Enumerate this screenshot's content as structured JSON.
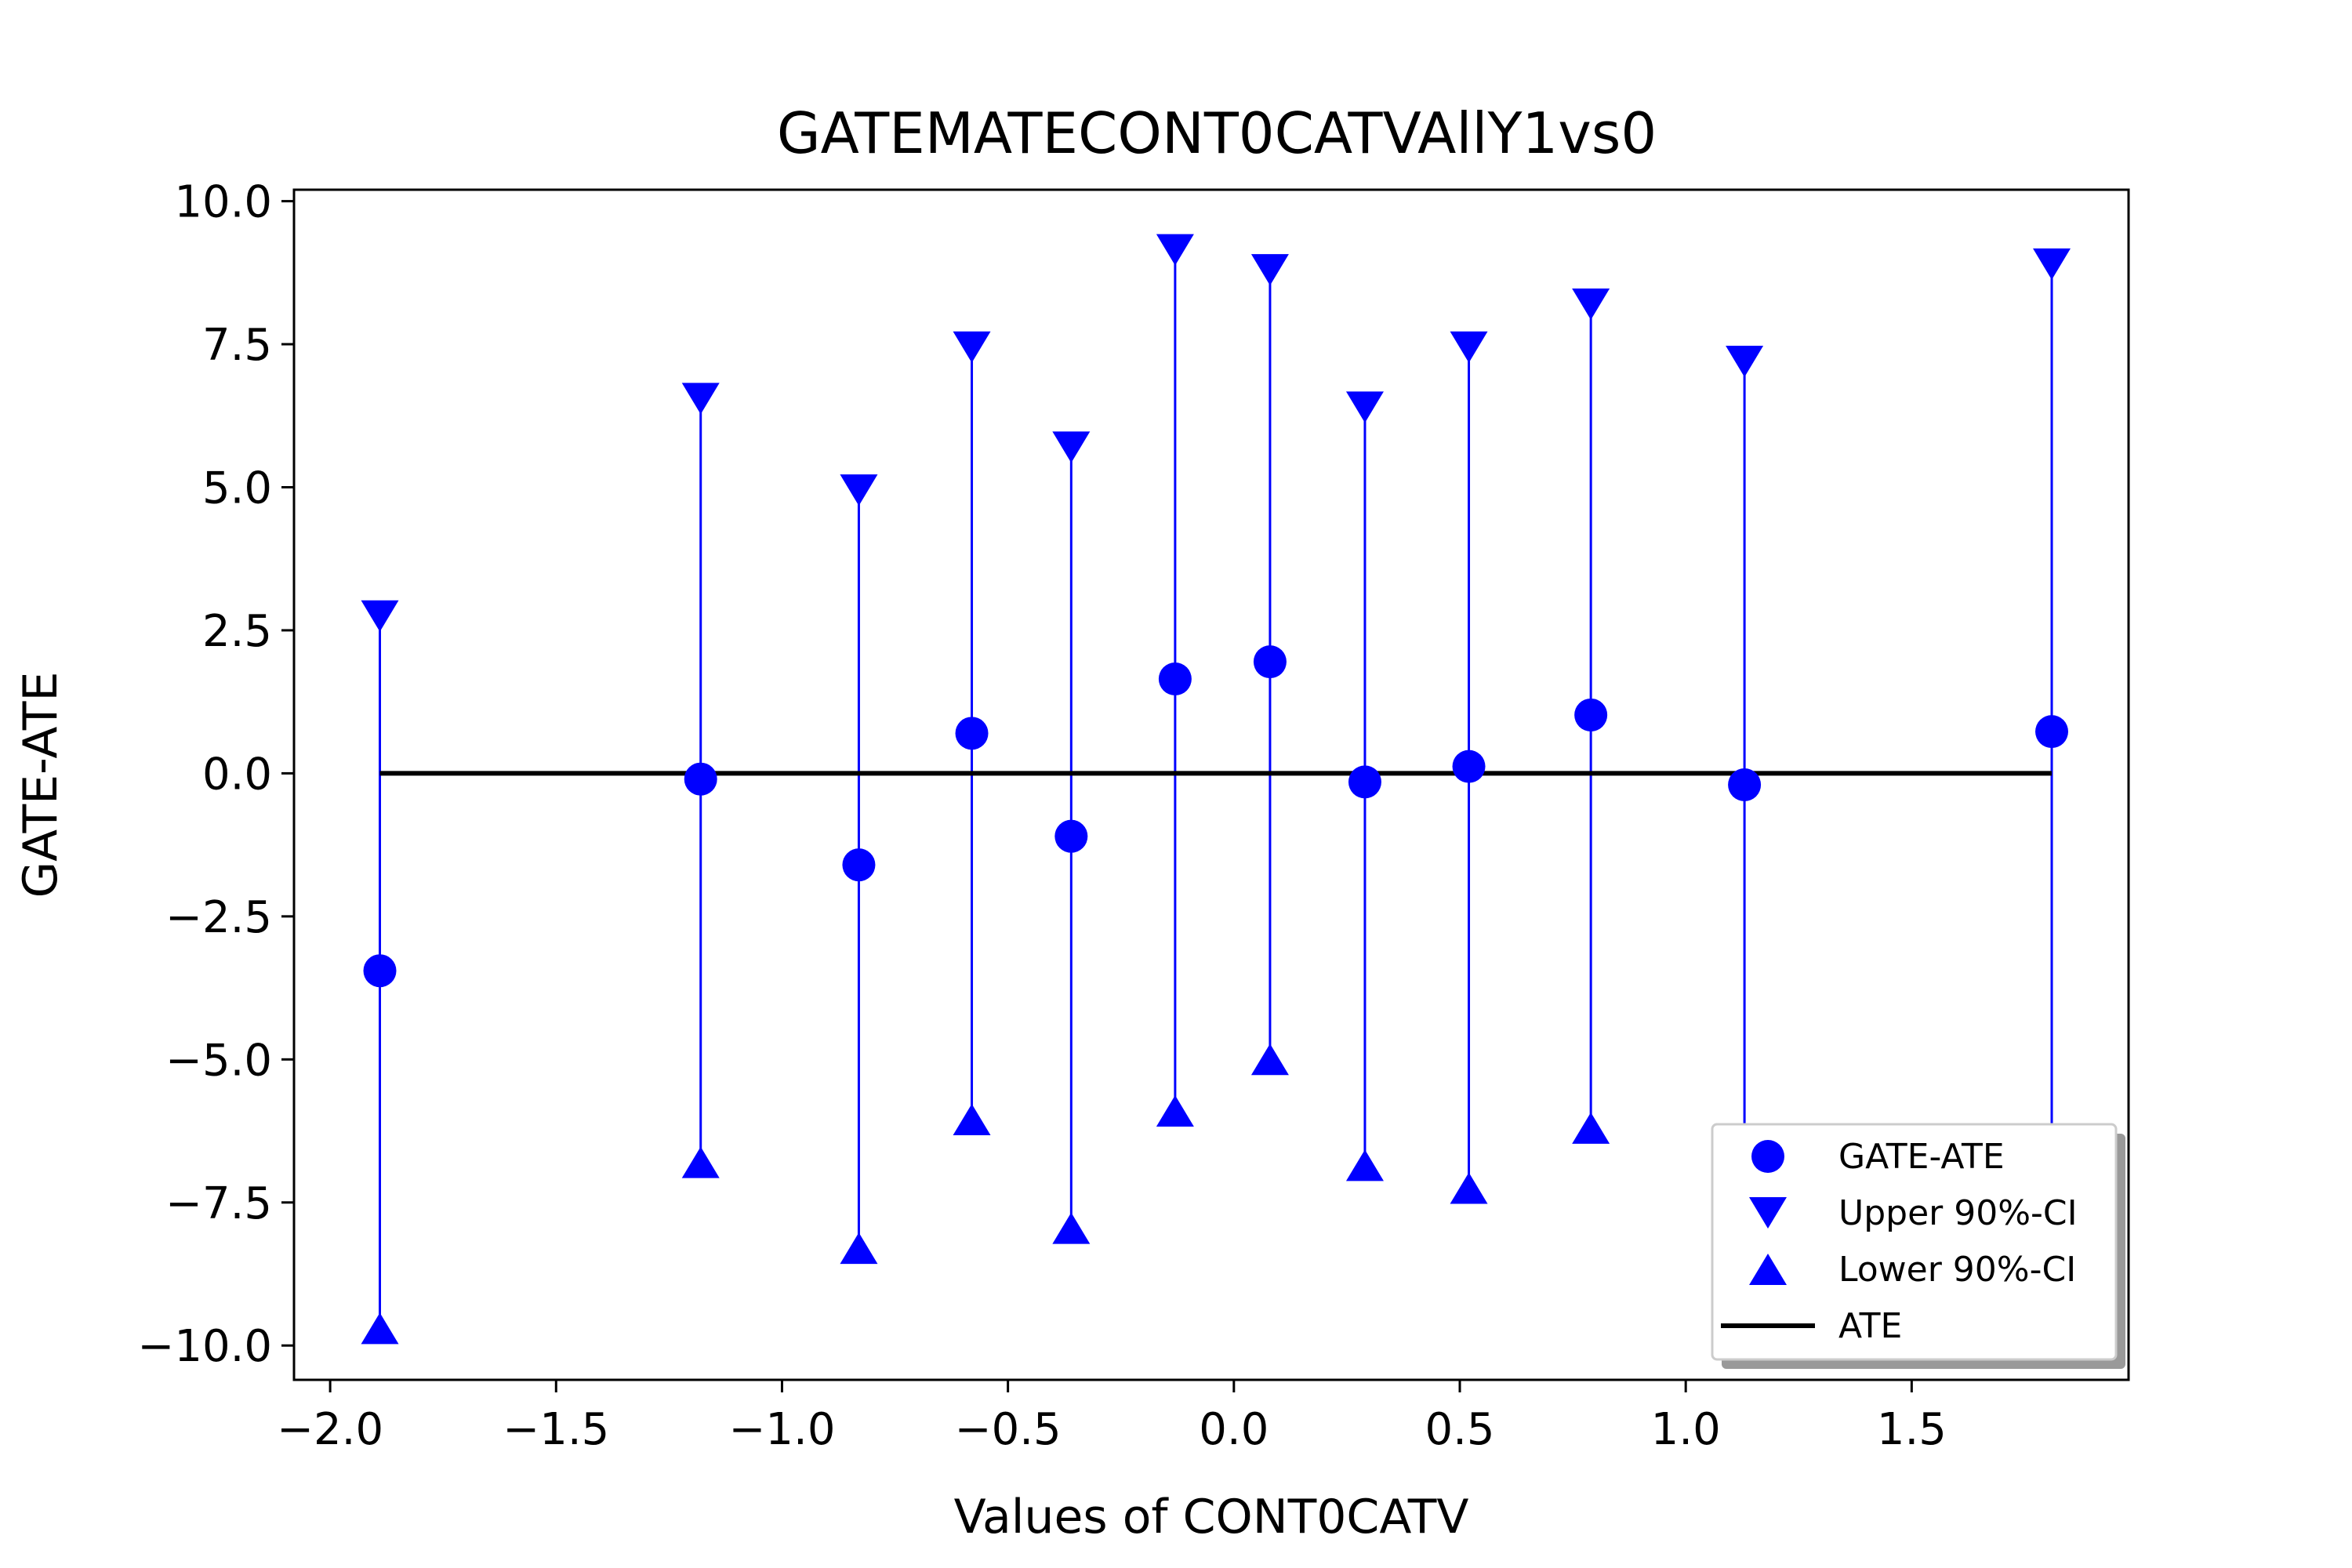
{
  "chart_data": {
    "type": "scatter",
    "title": "GATEMATECONT0CATVAllY1vs0",
    "xlabel": "Values of CONT0CATV",
    "ylabel": "GATE-ATE",
    "xlim": [
      -2.08,
      1.98
    ],
    "ylim": [
      -10.6,
      10.2
    ],
    "xticks": [
      -2.0,
      -1.5,
      -1.0,
      -0.5,
      0.0,
      0.5,
      1.0,
      1.5
    ],
    "xtick_labels": [
      "−2.0",
      "−1.5",
      "−1.0",
      "−0.5",
      "0.0",
      "0.5",
      "1.0",
      "1.5"
    ],
    "yticks": [
      10.0,
      7.5,
      5.0,
      2.5,
      0.0,
      -2.5,
      -5.0,
      -7.5,
      -10.0
    ],
    "ytick_labels": [
      "10.0",
      "7.5",
      "5.0",
      "2.5",
      "0.0",
      "−2.5",
      "−5.0",
      "−7.5",
      "−10.0"
    ],
    "grid": false,
    "legend_position": "lower-right",
    "colors": {
      "points": "#0000ff",
      "ate_line": "#000000"
    },
    "x": [
      -1.89,
      -1.18,
      -0.83,
      -0.58,
      -0.36,
      -0.13,
      0.08,
      0.29,
      0.52,
      0.79,
      1.13,
      1.81
    ],
    "series": [
      {
        "name": "GATE-ATE",
        "marker": "circle",
        "values": [
          -3.45,
          -0.1,
          -1.6,
          0.7,
          -1.1,
          1.65,
          1.95,
          -0.15,
          0.12,
          1.02,
          -0.2,
          0.73
        ]
      },
      {
        "name": "Upper 90%-CI",
        "marker": "triangle-down",
        "values": [
          2.75,
          6.55,
          4.95,
          7.45,
          5.7,
          9.15,
          8.8,
          6.4,
          7.45,
          8.2,
          7.2,
          8.9
        ]
      },
      {
        "name": "Lower 90%-CI",
        "marker": "triangle-up",
        "values": [
          -9.7,
          -6.8,
          -8.3,
          -6.05,
          -7.95,
          -5.9,
          -5.0,
          -6.85,
          -7.25,
          -6.2,
          -6.4,
          -6.4
        ]
      },
      {
        "name": "ATE",
        "marker": "line",
        "x": [
          -1.89,
          1.81
        ],
        "values": [
          0.0,
          0.0
        ]
      }
    ]
  }
}
